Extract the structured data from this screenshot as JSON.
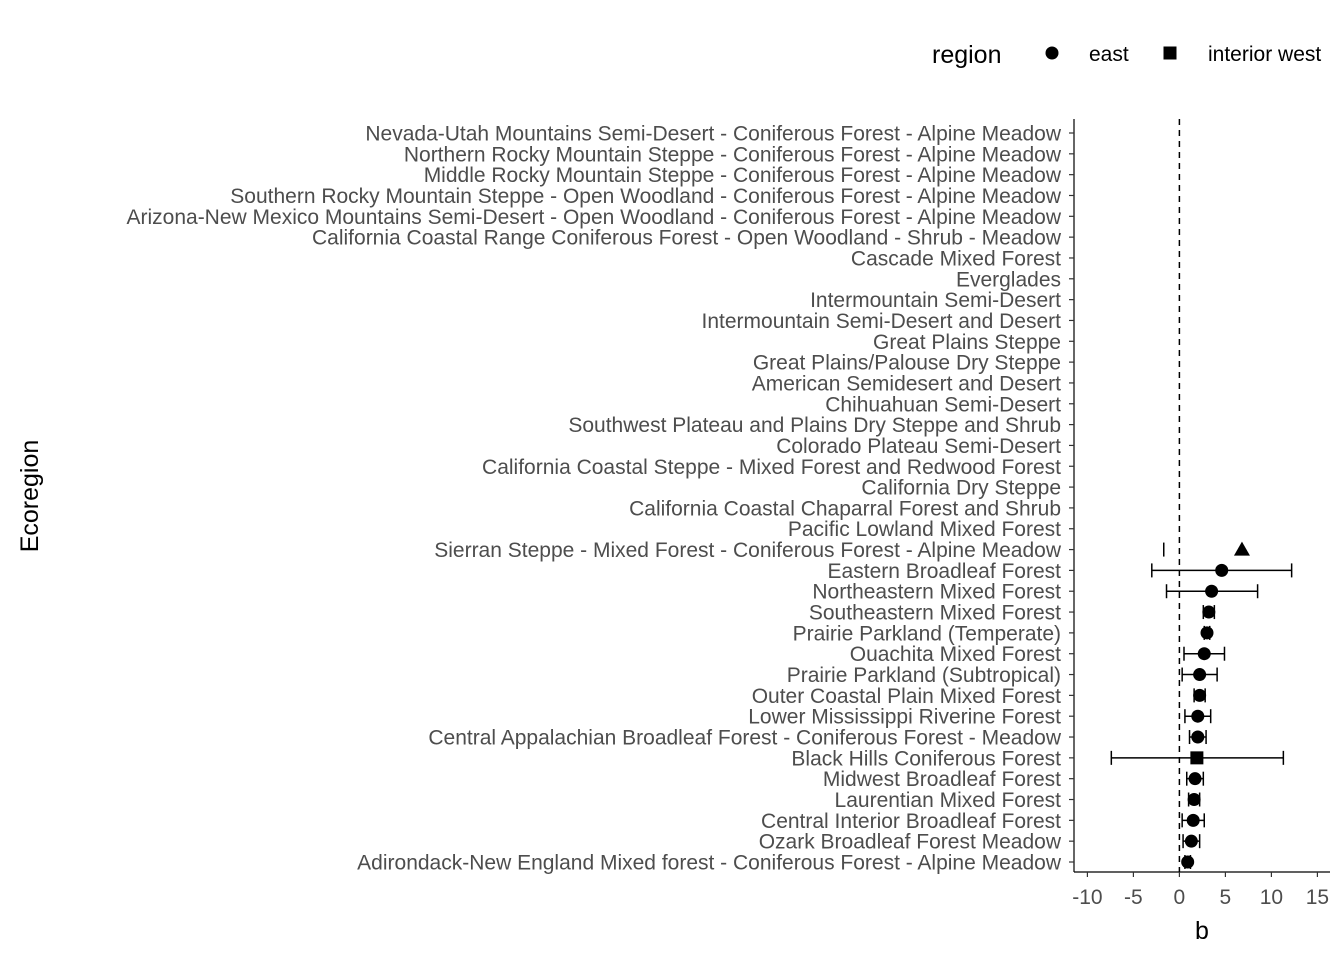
{
  "chart_data": {
    "type": "scatter",
    "title": "",
    "xlabel": "b",
    "ylabel": "Ecoregion",
    "xlim": [
      -11,
      16
    ],
    "x_ticks": [
      -10,
      -5,
      0,
      5,
      10,
      15
    ],
    "x_tick_labels": [
      "-10",
      "-5",
      "0",
      "5",
      "10",
      "15"
    ],
    "reference_line": {
      "x": 0,
      "style": "dashed"
    },
    "grid": false,
    "legend": {
      "title": "region",
      "placement": "top-right",
      "entries": [
        {
          "label": "east",
          "shape": "circle"
        },
        {
          "label": "interior west",
          "shape": "square"
        }
      ]
    },
    "categories": [
      "Nevada-Utah Mountains Semi-Desert - Coniferous Forest - Alpine Meadow",
      "Northern Rocky Mountain Steppe - Coniferous Forest - Alpine Meadow",
      "Middle Rocky Mountain Steppe - Coniferous Forest - Alpine Meadow",
      "Southern Rocky Mountain Steppe - Open Woodland - Coniferous Forest - Alpine Meadow",
      "Arizona-New Mexico Mountains Semi-Desert - Open Woodland - Coniferous Forest - Alpine Meadow",
      "California Coastal Range Coniferous Forest - Open Woodland - Shrub - Meadow",
      "Cascade Mixed Forest",
      "Everglades",
      "Intermountain Semi-Desert",
      "Intermountain Semi-Desert and Desert",
      "Great Plains Steppe",
      "Great Plains/Palouse Dry Steppe",
      "American Semidesert and Desert",
      "Chihuahuan Semi-Desert",
      "Southwest Plateau and Plains Dry Steppe and Shrub",
      "Colorado Plateau Semi-Desert",
      "California Coastal Steppe - Mixed Forest and Redwood Forest",
      "California Dry Steppe",
      "California Coastal Chaparral Forest and Shrub",
      "Pacific Lowland Mixed Forest",
      "Sierran Steppe - Mixed Forest - Coniferous Forest - Alpine Meadow",
      "Eastern Broadleaf Forest",
      "Northeastern Mixed Forest",
      "Southeastern Mixed Forest",
      "Prairie Parkland (Temperate)",
      "Ouachita Mixed Forest",
      "Prairie Parkland (Subtropical)",
      "Outer Coastal Plain Mixed Forest",
      "Lower Mississippi Riverine Forest",
      "Central Appalachian Broadleaf Forest - Coniferous Forest - Meadow",
      "Black Hills Coniferous Forest",
      "Midwest Broadleaf Forest",
      "Laurentian Mixed Forest",
      "Central Interior Broadleaf Forest",
      "Ozark Broadleaf Forest Meadow",
      "Adirondack-New England Mixed forest - Coniferous Forest - Alpine Meadow"
    ],
    "points": [
      {
        "category": "Sierran Steppe - Mixed Forest - Coniferous Forest - Alpine Meadow",
        "b": 6.8,
        "lower": -1.7,
        "upper": null,
        "shape": "triangle"
      },
      {
        "category": "Eastern Broadleaf Forest",
        "b": 4.6,
        "lower": -3.0,
        "upper": 12.2,
        "shape": "circle"
      },
      {
        "category": "Northeastern Mixed Forest",
        "b": 3.5,
        "lower": -1.4,
        "upper": 8.5,
        "shape": "circle"
      },
      {
        "category": "Southeastern Mixed Forest",
        "b": 3.2,
        "lower": 2.6,
        "upper": 3.8,
        "shape": "circle"
      },
      {
        "category": "Prairie Parkland (Temperate)",
        "b": 3.0,
        "lower": 2.7,
        "upper": 3.3,
        "shape": "circle"
      },
      {
        "category": "Ouachita Mixed Forest",
        "b": 2.7,
        "lower": 0.5,
        "upper": 4.9,
        "shape": "circle"
      },
      {
        "category": "Prairie Parkland (Subtropical)",
        "b": 2.2,
        "lower": 0.3,
        "upper": 4.1,
        "shape": "circle"
      },
      {
        "category": "Outer Coastal Plain Mixed Forest",
        "b": 2.2,
        "lower": 1.6,
        "upper": 2.8,
        "shape": "circle"
      },
      {
        "category": "Lower Mississippi Riverine Forest",
        "b": 2.0,
        "lower": 0.6,
        "upper": 3.4,
        "shape": "circle"
      },
      {
        "category": "Central Appalachian Broadleaf Forest - Coniferous Forest - Meadow",
        "b": 2.0,
        "lower": 1.1,
        "upper": 2.9,
        "shape": "circle"
      },
      {
        "category": "Black Hills Coniferous Forest",
        "b": 1.9,
        "lower": -7.4,
        "upper": 11.3,
        "shape": "square"
      },
      {
        "category": "Midwest Broadleaf Forest",
        "b": 1.7,
        "lower": 0.8,
        "upper": 2.6,
        "shape": "circle"
      },
      {
        "category": "Laurentian Mixed Forest",
        "b": 1.6,
        "lower": 1.0,
        "upper": 2.2,
        "shape": "circle"
      },
      {
        "category": "Central Interior Broadleaf Forest",
        "b": 1.5,
        "lower": 0.3,
        "upper": 2.7,
        "shape": "circle"
      },
      {
        "category": "Ozark Broadleaf Forest Meadow",
        "b": 1.3,
        "lower": 0.4,
        "upper": 2.2,
        "shape": "circle"
      },
      {
        "category": "Adirondack-New England Mixed forest - Coniferous Forest - Alpine Meadow",
        "b": 0.9,
        "lower": 0.6,
        "upper": 1.2,
        "shape": "circle"
      }
    ]
  }
}
